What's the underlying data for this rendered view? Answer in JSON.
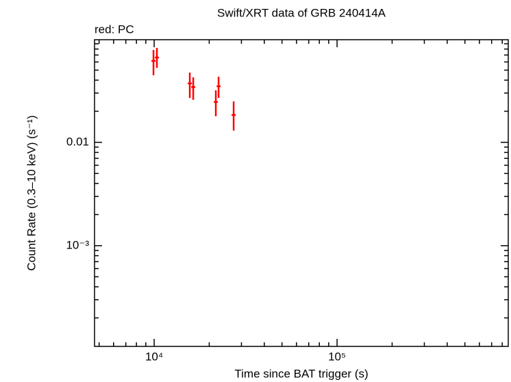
{
  "chart_data": {
    "type": "scatter",
    "title": "Swift/XRT data of GRB 240414A",
    "annotation": "red: PC",
    "xlabel": "Time since BAT trigger (s)",
    "ylabel": "Count Rate (0.3–10 keV) (s⁻¹)",
    "xlog": true,
    "ylog": true,
    "xlim": [
      4720,
      863000
    ],
    "ylim": [
      0.000106,
      0.0985
    ],
    "xticks": [
      {
        "value": 10000,
        "label": "10⁴"
      },
      {
        "value": 100000,
        "label": "10⁵"
      }
    ],
    "yticks": [
      {
        "value": 0.001,
        "label": "10⁻³"
      },
      0.01
    ],
    "xminorticks": [
      5000,
      6000,
      7000,
      8000,
      9000,
      20000,
      30000,
      40000,
      50000,
      60000,
      70000,
      80000,
      90000,
      200000,
      300000,
      400000,
      500000,
      600000,
      700000,
      800000
    ],
    "yminorticks": [
      0.0002,
      0.0003,
      0.0004,
      0.0005,
      0.0006,
      0.0007,
      0.0008,
      0.0009,
      0.002,
      0.003,
      0.004,
      0.005,
      0.006,
      0.007,
      0.008,
      0.009,
      0.02,
      0.03,
      0.04,
      0.05,
      0.06,
      0.07,
      0.08,
      0.09
    ],
    "series": [
      {
        "color": "#ff0000",
        "x": [
          9914,
          10350,
          15660,
          16350,
          21730,
          22500,
          27200
        ],
        "x_low": [
          9660,
          10090,
          15260,
          15950,
          21200,
          21960,
          26510
        ],
        "x_high": [
          10170,
          10620,
          16070,
          16770,
          22290,
          23070,
          27900
        ],
        "values": [
          0.0614,
          0.0662,
          0.0372,
          0.0343,
          0.0246,
          0.0349,
          0.0184
        ],
        "y_low": [
          0.0446,
          0.0527,
          0.0269,
          0.0258,
          0.0179,
          0.0269,
          0.013
        ],
        "y_high": [
          0.0783,
          0.082,
          0.0473,
          0.0426,
          0.0319,
          0.0432,
          0.0249
        ]
      }
    ]
  }
}
